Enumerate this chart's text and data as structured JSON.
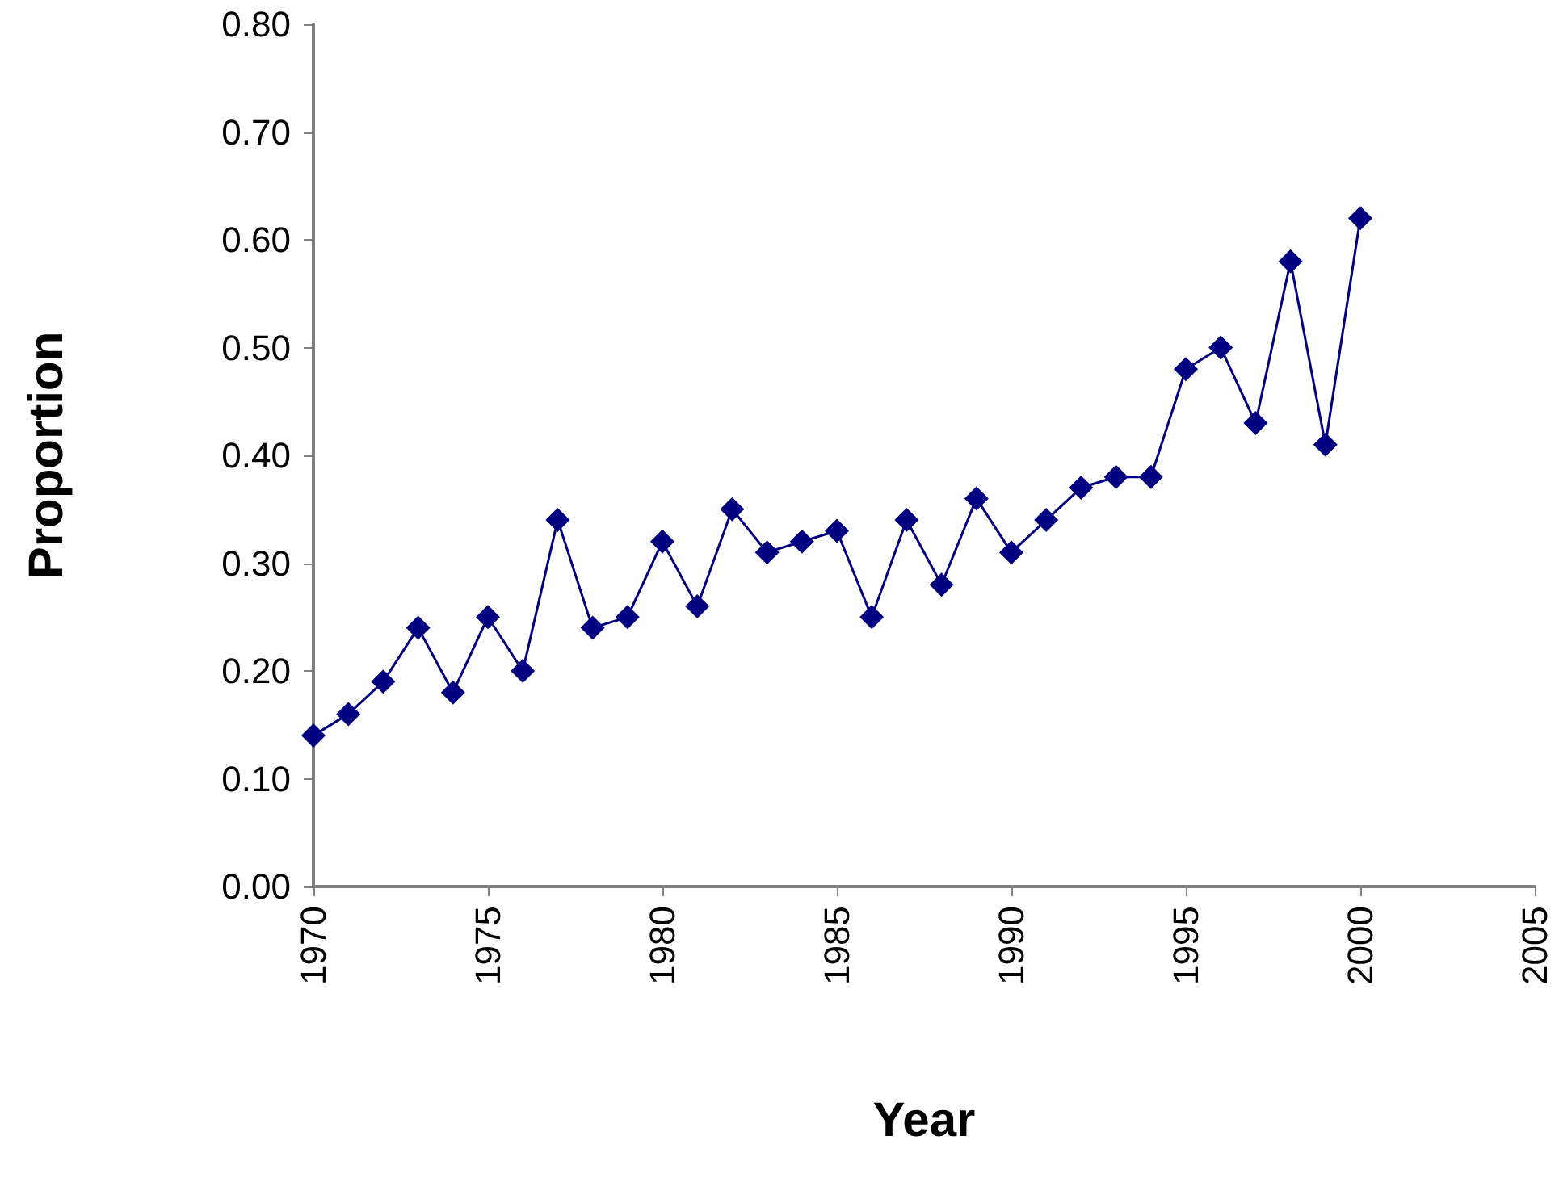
{
  "chart_data": {
    "type": "line",
    "xlabel": "Year",
    "ylabel": "Proportion",
    "x": [
      1970,
      1971,
      1972,
      1973,
      1974,
      1975,
      1976,
      1977,
      1978,
      1979,
      1980,
      1981,
      1982,
      1983,
      1984,
      1985,
      1986,
      1987,
      1988,
      1989,
      1990,
      1991,
      1992,
      1993,
      1994,
      1995,
      1996,
      1997,
      1998,
      1999,
      2000
    ],
    "series": [
      {
        "color": "#000080",
        "values": [
          0.14,
          0.16,
          0.19,
          0.24,
          0.18,
          0.25,
          0.2,
          0.34,
          0.24,
          0.25,
          0.32,
          0.26,
          0.35,
          0.31,
          0.32,
          0.33,
          0.25,
          0.34,
          0.28,
          0.36,
          0.31,
          0.34,
          0.37,
          0.38,
          0.38,
          0.48,
          0.5,
          0.43,
          0.58,
          0.41,
          0.62
        ]
      }
    ],
    "xlim": [
      1970,
      2005
    ],
    "xticks": [
      1970,
      1975,
      1980,
      1985,
      1990,
      1995,
      2000,
      2005
    ],
    "ylim": [
      0,
      0.8
    ],
    "yticks": [
      {
        "value": 0,
        "label": "0.00"
      },
      {
        "value": 0.1,
        "label": "0.10"
      },
      {
        "value": 0.2,
        "label": "0.20"
      },
      {
        "value": 0.3,
        "label": "0.30"
      },
      {
        "value": 0.4,
        "label": "0.40"
      },
      {
        "value": 0.5,
        "label": "0.50"
      },
      {
        "value": 0.6,
        "label": "0.60"
      },
      {
        "value": 0.7,
        "label": "0.70"
      },
      {
        "value": 0.8,
        "label": "0.80"
      }
    ],
    "grid": false,
    "marker": "diamond",
    "line_style": "solid"
  }
}
